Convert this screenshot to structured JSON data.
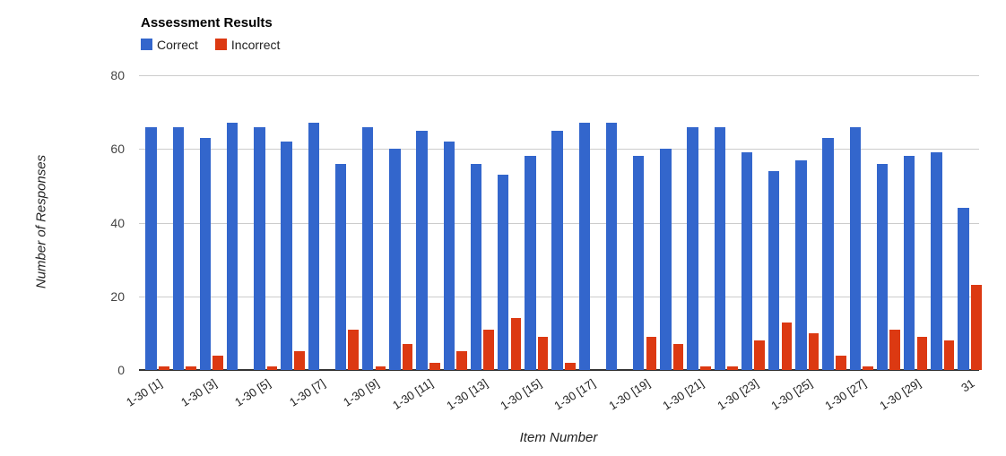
{
  "chart_data": {
    "type": "bar",
    "title": "Assessment Results",
    "xlabel": "Item Number",
    "ylabel": "Number of Responses",
    "ylim": [
      0,
      80
    ],
    "yticks": [
      0,
      20,
      40,
      60,
      80
    ],
    "grid": true,
    "legend_position": "top-left",
    "n_items": 31,
    "x_tick_labels": [
      "1-30 [1]",
      "1-30 [3]",
      "1-30 [5]",
      "1-30 [7]",
      "1-30 [9]",
      "1-30 [11]",
      "1-30 [13]",
      "1-30 [15]",
      "1-30 [17]",
      "1-30 [19]",
      "1-30 [21]",
      "1-30 [23]",
      "1-30 [25]",
      "1-30 [27]",
      "1-30 [29]",
      "31"
    ],
    "x_tick_item_indices": [
      0,
      2,
      4,
      6,
      8,
      10,
      12,
      14,
      16,
      18,
      20,
      22,
      24,
      26,
      28,
      30
    ],
    "series": [
      {
        "name": "Correct",
        "color": "#3366CC",
        "values": [
          66,
          66,
          63,
          67,
          66,
          62,
          67,
          56,
          66,
          60,
          65,
          62,
          56,
          53,
          58,
          65,
          67,
          67,
          58,
          60,
          66,
          66,
          59,
          54,
          57,
          63,
          66,
          56,
          58,
          59,
          44
        ]
      },
      {
        "name": "Incorrect",
        "color": "#DC3912",
        "values": [
          1,
          1,
          4,
          0,
          1,
          5,
          0,
          11,
          1,
          7,
          2,
          5,
          11,
          14,
          9,
          2,
          0,
          0,
          9,
          7,
          1,
          1,
          8,
          13,
          10,
          4,
          1,
          11,
          9,
          8,
          23
        ]
      }
    ],
    "colors": {
      "gridline": "#CCCCCC",
      "baseline": "#333333",
      "tick_text": "#444444",
      "background": "#FFFFFF"
    }
  }
}
